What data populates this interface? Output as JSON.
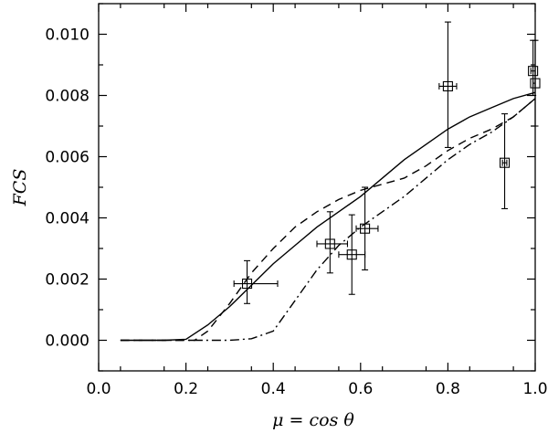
{
  "chart_data": {
    "type": "line",
    "xlabel": "μ = cos θ",
    "ylabel": "FCS",
    "xlim": [
      0.0,
      1.0
    ],
    "ylim": [
      -0.001,
      0.011
    ],
    "x_ticks": [
      {
        "value": 0.0,
        "label": "0.0"
      },
      {
        "value": 0.2,
        "label": "0.2"
      },
      {
        "value": 0.4,
        "label": "0.4"
      },
      {
        "value": 0.6,
        "label": "0.6"
      },
      {
        "value": 0.8,
        "label": "0.8"
      },
      {
        "value": 1.0,
        "label": "1.0"
      }
    ],
    "y_ticks": [
      {
        "value": 0.0,
        "label": "0.000"
      },
      {
        "value": 0.002,
        "label": "0.002"
      },
      {
        "value": 0.004,
        "label": "0.004"
      },
      {
        "value": 0.006,
        "label": "0.006"
      },
      {
        "value": 0.008,
        "label": "0.008"
      },
      {
        "value": 0.01,
        "label": "0.010"
      }
    ],
    "series": [
      {
        "style": "solid",
        "x": [
          0.05,
          0.1,
          0.15,
          0.2,
          0.25,
          0.3,
          0.35,
          0.4,
          0.45,
          0.5,
          0.55,
          0.6,
          0.65,
          0.7,
          0.75,
          0.8,
          0.85,
          0.9,
          0.95,
          1.0
        ],
        "y": [
          0.0,
          0.0,
          0.0,
          3e-05,
          0.0005,
          0.0011,
          0.0018,
          0.0025,
          0.0031,
          0.0037,
          0.0042,
          0.0047,
          0.0053,
          0.0059,
          0.0064,
          0.0069,
          0.0073,
          0.0076,
          0.0079,
          0.0081
        ]
      },
      {
        "style": "dashed",
        "x": [
          0.05,
          0.15,
          0.22,
          0.25,
          0.3,
          0.35,
          0.4,
          0.45,
          0.5,
          0.55,
          0.6,
          0.65,
          0.7,
          0.75,
          0.8,
          0.85,
          0.9,
          0.95,
          1.0
        ],
        "y": [
          0.0,
          0.0,
          0.0,
          0.0003,
          0.0012,
          0.0022,
          0.003,
          0.0037,
          0.0042,
          0.0046,
          0.0049,
          0.0051,
          0.0053,
          0.0057,
          0.0062,
          0.0066,
          0.0069,
          0.0073,
          0.0079
        ]
      },
      {
        "style": "dash-dot",
        "x": [
          0.05,
          0.2,
          0.3,
          0.35,
          0.4,
          0.45,
          0.5,
          0.55,
          0.6,
          0.65,
          0.7,
          0.75,
          0.8,
          0.85,
          0.9,
          0.95,
          1.0
        ],
        "y": [
          0.0,
          0.0,
          0.0,
          5e-05,
          0.0003,
          0.0013,
          0.0023,
          0.0031,
          0.0037,
          0.0042,
          0.0047,
          0.0053,
          0.0059,
          0.0064,
          0.0068,
          0.0073,
          0.0079
        ]
      }
    ],
    "points": [
      {
        "x": 0.34,
        "y": 0.00185,
        "xerr": [
          0.31,
          0.41
        ],
        "yerr": [
          0.0012,
          0.0026
        ]
      },
      {
        "x": 0.53,
        "y": 0.00315,
        "xerr": [
          0.5,
          0.57
        ],
        "yerr": [
          0.0022,
          0.0042
        ]
      },
      {
        "x": 0.58,
        "y": 0.0028,
        "xerr": [
          0.55,
          0.61
        ],
        "yerr": [
          0.0015,
          0.0041
        ]
      },
      {
        "x": 0.61,
        "y": 0.00365,
        "xerr": [
          0.59,
          0.64
        ],
        "yerr": [
          0.0023,
          0.005
        ]
      },
      {
        "x": 0.8,
        "y": 0.0083,
        "xerr": [
          0.78,
          0.82
        ],
        "yerr": [
          0.0063,
          0.0104
        ]
      },
      {
        "x": 0.93,
        "y": 0.0058,
        "xerr": [
          0.925,
          0.935
        ],
        "yerr": [
          0.0043,
          0.0074
        ]
      },
      {
        "x": 0.995,
        "y": 0.0088,
        "xerr": [
          0.99,
          1.0
        ],
        "yerr": [
          0.008,
          0.0098
        ]
      },
      {
        "x": 1.0,
        "y": 0.0084,
        "xerr": [
          0.995,
          1.0
        ],
        "yerr": [
          0.007,
          0.0098
        ]
      }
    ],
    "grid": false,
    "legend": "none"
  }
}
